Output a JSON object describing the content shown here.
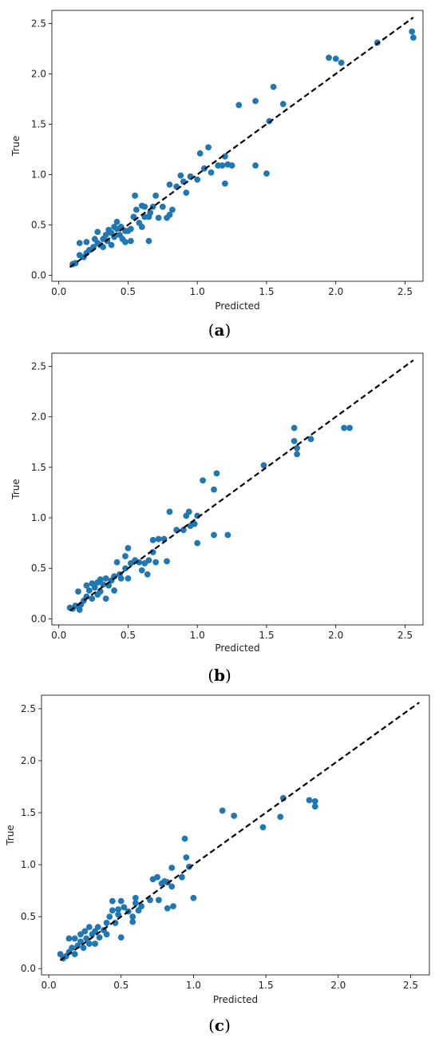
{
  "chart_data": [
    {
      "type": "scatter",
      "panel_label": "(a)",
      "panel_letter": "a",
      "xlabel": "Predicted",
      "ylabel": "True",
      "xlim": [
        -0.05,
        2.63
      ],
      "ylim": [
        -0.06,
        2.63
      ],
      "xticks": [
        "0.0",
        "0.5",
        "1.0",
        "1.5",
        "2.0",
        "2.5"
      ],
      "yticks": [
        "0.0",
        "0.5",
        "1.0",
        "1.5",
        "2.0",
        "2.5"
      ],
      "point_color": "#1f77b4",
      "line_color": "#000000",
      "reference_line": {
        "x": [
          0.08,
          2.56
        ],
        "y": [
          0.08,
          2.56
        ]
      },
      "points": [
        [
          0.1,
          0.11
        ],
        [
          0.12,
          0.12
        ],
        [
          0.15,
          0.2
        ],
        [
          0.15,
          0.32
        ],
        [
          0.18,
          0.18
        ],
        [
          0.2,
          0.33
        ],
        [
          0.2,
          0.22
        ],
        [
          0.22,
          0.25
        ],
        [
          0.25,
          0.28
        ],
        [
          0.26,
          0.36
        ],
        [
          0.28,
          0.32
        ],
        [
          0.28,
          0.43
        ],
        [
          0.3,
          0.3
        ],
        [
          0.32,
          0.28
        ],
        [
          0.32,
          0.36
        ],
        [
          0.34,
          0.4
        ],
        [
          0.35,
          0.34
        ],
        [
          0.36,
          0.45
        ],
        [
          0.38,
          0.3
        ],
        [
          0.38,
          0.42
        ],
        [
          0.4,
          0.48
        ],
        [
          0.4,
          0.38
        ],
        [
          0.42,
          0.46
        ],
        [
          0.42,
          0.53
        ],
        [
          0.44,
          0.4
        ],
        [
          0.45,
          0.48
        ],
        [
          0.46,
          0.36
        ],
        [
          0.48,
          0.44
        ],
        [
          0.5,
          0.44
        ],
        [
          0.48,
          0.33
        ],
        [
          0.52,
          0.34
        ],
        [
          0.52,
          0.46
        ],
        [
          0.54,
          0.58
        ],
        [
          0.55,
          0.79
        ],
        [
          0.56,
          0.65
        ],
        [
          0.58,
          0.52
        ],
        [
          0.6,
          0.48
        ],
        [
          0.6,
          0.69
        ],
        [
          0.62,
          0.68
        ],
        [
          0.62,
          0.58
        ],
        [
          0.65,
          0.34
        ],
        [
          0.65,
          0.58
        ],
        [
          0.66,
          0.62
        ],
        [
          0.68,
          0.68
        ],
        [
          0.7,
          0.79
        ],
        [
          0.72,
          0.57
        ],
        [
          0.75,
          0.68
        ],
        [
          0.78,
          0.57
        ],
        [
          0.8,
          0.6
        ],
        [
          0.82,
          0.65
        ],
        [
          0.8,
          0.9
        ],
        [
          0.85,
          0.88
        ],
        [
          0.88,
          0.99
        ],
        [
          0.9,
          0.93
        ],
        [
          0.92,
          0.82
        ],
        [
          0.95,
          0.98
        ],
        [
          1.0,
          0.95
        ],
        [
          1.02,
          1.21
        ],
        [
          1.05,
          1.06
        ],
        [
          1.08,
          1.27
        ],
        [
          1.1,
          1.02
        ],
        [
          1.15,
          1.09
        ],
        [
          1.18,
          1.09
        ],
        [
          1.2,
          1.18
        ],
        [
          1.22,
          1.1
        ],
        [
          1.25,
          1.09
        ],
        [
          1.2,
          0.91
        ],
        [
          1.3,
          1.69
        ],
        [
          1.42,
          1.73
        ],
        [
          1.42,
          1.09
        ],
        [
          1.5,
          1.01
        ],
        [
          1.52,
          1.53
        ],
        [
          1.55,
          1.87
        ],
        [
          1.62,
          1.7
        ],
        [
          1.95,
          2.16
        ],
        [
          2.0,
          2.15
        ],
        [
          2.04,
          2.11
        ],
        [
          2.3,
          2.31
        ],
        [
          2.55,
          2.42
        ],
        [
          2.56,
          2.36
        ]
      ]
    },
    {
      "type": "scatter",
      "panel_label": "(b)",
      "panel_letter": "b",
      "xlabel": "Predicted",
      "ylabel": "True",
      "xlim": [
        -0.05,
        2.63
      ],
      "ylim": [
        -0.06,
        2.63
      ],
      "xticks": [
        "0.0",
        "0.5",
        "1.0",
        "1.5",
        "2.0",
        "2.5"
      ],
      "yticks": [
        "0.0",
        "0.5",
        "1.0",
        "1.5",
        "2.0",
        "2.5"
      ],
      "point_color": "#1f77b4",
      "line_color": "#000000",
      "reference_line": {
        "x": [
          0.08,
          2.56
        ],
        "y": [
          0.08,
          2.56
        ]
      },
      "points": [
        [
          0.08,
          0.11
        ],
        [
          0.1,
          0.1
        ],
        [
          0.12,
          0.13
        ],
        [
          0.14,
          0.27
        ],
        [
          0.15,
          0.09
        ],
        [
          0.16,
          0.14
        ],
        [
          0.18,
          0.18
        ],
        [
          0.2,
          0.33
        ],
        [
          0.2,
          0.22
        ],
        [
          0.22,
          0.28
        ],
        [
          0.24,
          0.35
        ],
        [
          0.24,
          0.2
        ],
        [
          0.26,
          0.31
        ],
        [
          0.28,
          0.36
        ],
        [
          0.28,
          0.24
        ],
        [
          0.3,
          0.39
        ],
        [
          0.3,
          0.27
        ],
        [
          0.32,
          0.34
        ],
        [
          0.34,
          0.4
        ],
        [
          0.34,
          0.2
        ],
        [
          0.36,
          0.33
        ],
        [
          0.38,
          0.38
        ],
        [
          0.4,
          0.28
        ],
        [
          0.4,
          0.42
        ],
        [
          0.42,
          0.56
        ],
        [
          0.44,
          0.44
        ],
        [
          0.45,
          0.4
        ],
        [
          0.48,
          0.62
        ],
        [
          0.48,
          0.5
        ],
        [
          0.5,
          0.7
        ],
        [
          0.5,
          0.4
        ],
        [
          0.52,
          0.55
        ],
        [
          0.55,
          0.58
        ],
        [
          0.58,
          0.56
        ],
        [
          0.6,
          0.48
        ],
        [
          0.62,
          0.55
        ],
        [
          0.64,
          0.44
        ],
        [
          0.65,
          0.58
        ],
        [
          0.68,
          0.78
        ],
        [
          0.68,
          0.66
        ],
        [
          0.7,
          0.56
        ],
        [
          0.72,
          0.79
        ],
        [
          0.76,
          0.79
        ],
        [
          0.78,
          0.57
        ],
        [
          0.8,
          1.06
        ],
        [
          0.85,
          0.88
        ],
        [
          0.9,
          0.88
        ],
        [
          0.92,
          1.02
        ],
        [
          0.94,
          1.06
        ],
        [
          0.95,
          0.92
        ],
        [
          0.98,
          0.94
        ],
        [
          1.0,
          1.02
        ],
        [
          1.0,
          0.75
        ],
        [
          1.04,
          1.37
        ],
        [
          1.12,
          1.28
        ],
        [
          1.14,
          1.44
        ],
        [
          1.12,
          0.83
        ],
        [
          1.22,
          0.83
        ],
        [
          1.48,
          1.52
        ],
        [
          1.7,
          1.89
        ],
        [
          1.7,
          1.76
        ],
        [
          1.72,
          1.63
        ],
        [
          1.72,
          1.69
        ],
        [
          1.82,
          1.78
        ],
        [
          2.06,
          1.89
        ],
        [
          2.1,
          1.89
        ]
      ]
    },
    {
      "type": "scatter",
      "panel_label": "(c)",
      "panel_letter": "c",
      "xlabel": "Predicted",
      "ylabel": "True",
      "xlim": [
        -0.05,
        2.63
      ],
      "ylim": [
        -0.06,
        2.63
      ],
      "xticks": [
        "0.0",
        "0.5",
        "1.0",
        "1.5",
        "2.0",
        "2.5"
      ],
      "yticks": [
        "0.0",
        "0.5",
        "1.0",
        "1.5",
        "2.0",
        "2.5"
      ],
      "point_color": "#1f77b4",
      "line_color": "#000000",
      "reference_line": {
        "x": [
          0.08,
          2.56
        ],
        "y": [
          0.08,
          2.56
        ]
      },
      "points": [
        [
          0.08,
          0.14
        ],
        [
          0.1,
          0.1
        ],
        [
          0.12,
          0.12
        ],
        [
          0.14,
          0.16
        ],
        [
          0.14,
          0.29
        ],
        [
          0.16,
          0.2
        ],
        [
          0.18,
          0.29
        ],
        [
          0.18,
          0.14
        ],
        [
          0.2,
          0.22
        ],
        [
          0.22,
          0.26
        ],
        [
          0.22,
          0.33
        ],
        [
          0.24,
          0.2
        ],
        [
          0.25,
          0.36
        ],
        [
          0.26,
          0.29
        ],
        [
          0.28,
          0.4
        ],
        [
          0.28,
          0.24
        ],
        [
          0.3,
          0.33
        ],
        [
          0.32,
          0.36
        ],
        [
          0.32,
          0.24
        ],
        [
          0.34,
          0.4
        ],
        [
          0.35,
          0.3
        ],
        [
          0.38,
          0.37
        ],
        [
          0.4,
          0.44
        ],
        [
          0.4,
          0.33
        ],
        [
          0.42,
          0.5
        ],
        [
          0.44,
          0.56
        ],
        [
          0.44,
          0.65
        ],
        [
          0.46,
          0.44
        ],
        [
          0.48,
          0.57
        ],
        [
          0.48,
          0.52
        ],
        [
          0.5,
          0.65
        ],
        [
          0.5,
          0.3
        ],
        [
          0.52,
          0.59
        ],
        [
          0.55,
          0.55
        ],
        [
          0.58,
          0.45
        ],
        [
          0.58,
          0.5
        ],
        [
          0.6,
          0.63
        ],
        [
          0.6,
          0.68
        ],
        [
          0.62,
          0.56
        ],
        [
          0.64,
          0.6
        ],
        [
          0.7,
          0.66
        ],
        [
          0.72,
          0.86
        ],
        [
          0.75,
          0.88
        ],
        [
          0.76,
          0.66
        ],
        [
          0.78,
          0.82
        ],
        [
          0.8,
          0.84
        ],
        [
          0.82,
          0.83
        ],
        [
          0.85,
          0.79
        ],
        [
          0.85,
          0.97
        ],
        [
          0.82,
          0.58
        ],
        [
          0.86,
          0.6
        ],
        [
          0.92,
          0.88
        ],
        [
          0.94,
          1.25
        ],
        [
          0.95,
          1.07
        ],
        [
          0.97,
          0.98
        ],
        [
          1.0,
          0.68
        ],
        [
          1.2,
          1.52
        ],
        [
          1.28,
          1.47
        ],
        [
          1.48,
          1.36
        ],
        [
          1.6,
          1.46
        ],
        [
          1.62,
          1.64
        ],
        [
          1.8,
          1.62
        ],
        [
          1.84,
          1.61
        ],
        [
          1.84,
          1.56
        ]
      ]
    }
  ]
}
